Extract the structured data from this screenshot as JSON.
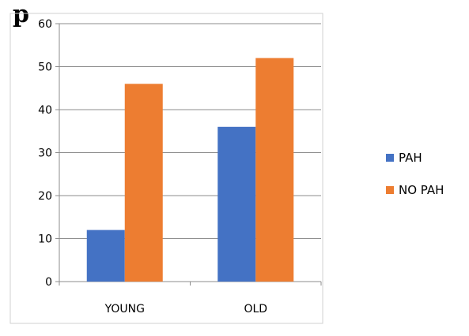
{
  "top_fragment": "p",
  "chart_data": {
    "type": "bar",
    "categories": [
      "YOUNG",
      "OLD"
    ],
    "series": [
      {
        "name": "PAH",
        "color": "#4472C4",
        "values": [
          12,
          36
        ]
      },
      {
        "name": "NO PAH",
        "color": "#ED7D31",
        "values": [
          46,
          52
        ]
      }
    ],
    "ylim": [
      0,
      60
    ],
    "yticks": [
      0,
      10,
      20,
      30,
      40,
      50,
      60
    ],
    "grid": true,
    "legend_position": "right",
    "title": "",
    "xlabel": "",
    "ylabel": ""
  }
}
